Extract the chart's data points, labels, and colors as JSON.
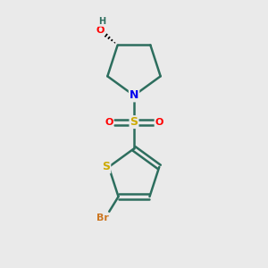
{
  "background_color": "#eaeaea",
  "atom_colors": {
    "C": "#2d6e5e",
    "N": "#0000ee",
    "O": "#ff0000",
    "S_sulfonyl": "#ccaa00",
    "S_thio": "#ccaa00",
    "Br": "#cc7722",
    "H": "#2d6e5e"
  },
  "bond_color": "#2d6e5e",
  "figsize": [
    3.0,
    3.0
  ],
  "dpi": 100
}
